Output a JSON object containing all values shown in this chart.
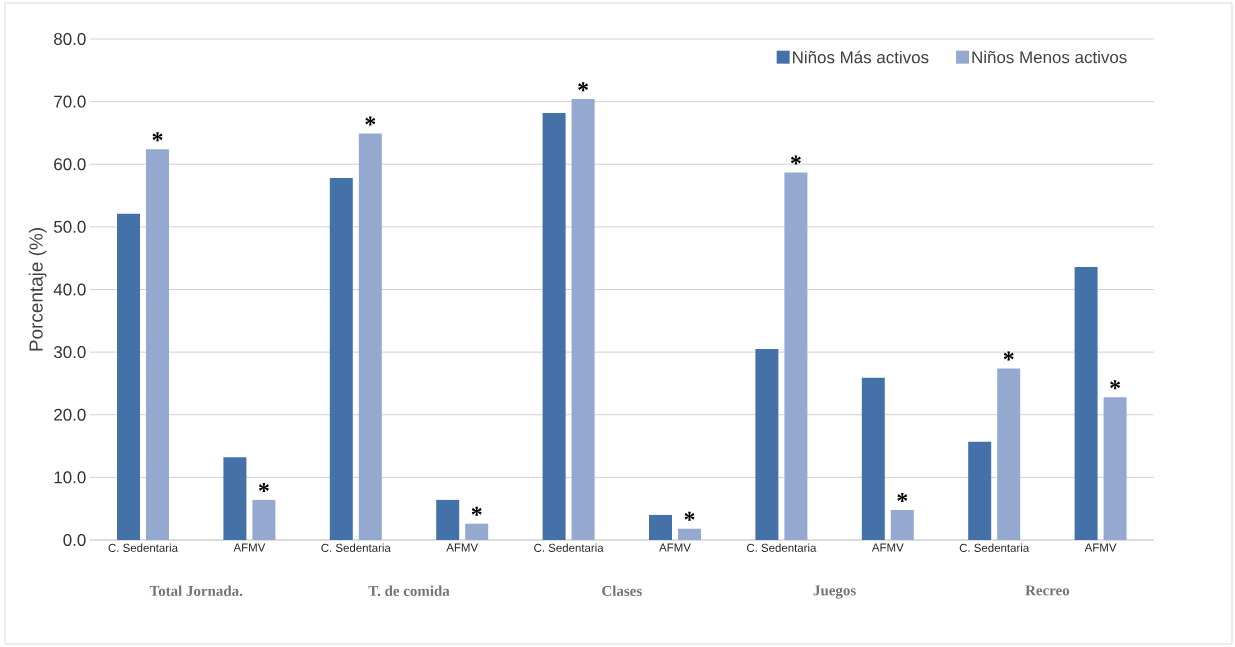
{
  "chart_data": {
    "type": "bar",
    "ylabel": "Porcentaje (%)",
    "categories": [
      "C. Sedentaria",
      "AFMV",
      "C. Sedentaria",
      "AFMV",
      "C. Sedentaria",
      "AFMV",
      "C. Sedentaria",
      "AFMV",
      "C. Sedentaria",
      "AFMV"
    ],
    "series": [
      {
        "name": "Niños Más activos",
        "color": "#4472a8",
        "values": [
          52.1,
          13.2,
          57.8,
          6.4,
          68.2,
          4.0,
          30.5,
          25.9,
          15.7,
          43.6
        ]
      },
      {
        "name": "Niños Menos activos",
        "color": "#95a9d0",
        "values": [
          62.4,
          6.4,
          64.9,
          2.6,
          70.4,
          1.8,
          58.7,
          4.8,
          27.4,
          22.8
        ],
        "value_labels": [
          "*",
          "*",
          "*",
          "*",
          "*",
          "*",
          "*",
          "*",
          "*",
          "*"
        ]
      }
    ],
    "ylim": [
      0,
      80
    ],
    "yticks": [
      {
        "value": 0,
        "label": "0.0"
      },
      {
        "value": 10,
        "label": "10.0"
      },
      {
        "value": 20,
        "label": "20.0"
      },
      {
        "value": 30,
        "label": "30.0"
      },
      {
        "value": 40,
        "label": "40.0"
      },
      {
        "value": 50,
        "label": "50.0"
      },
      {
        "value": 60,
        "label": "60.0"
      },
      {
        "value": 70,
        "label": "70.0"
      },
      {
        "value": 80,
        "label": "80.0"
      }
    ],
    "grid": "y",
    "legend": "top right",
    "annotations": [
      "Total Jornada.",
      "T. de comida",
      "Clases",
      "Juegos",
      "Recreo"
    ]
  }
}
